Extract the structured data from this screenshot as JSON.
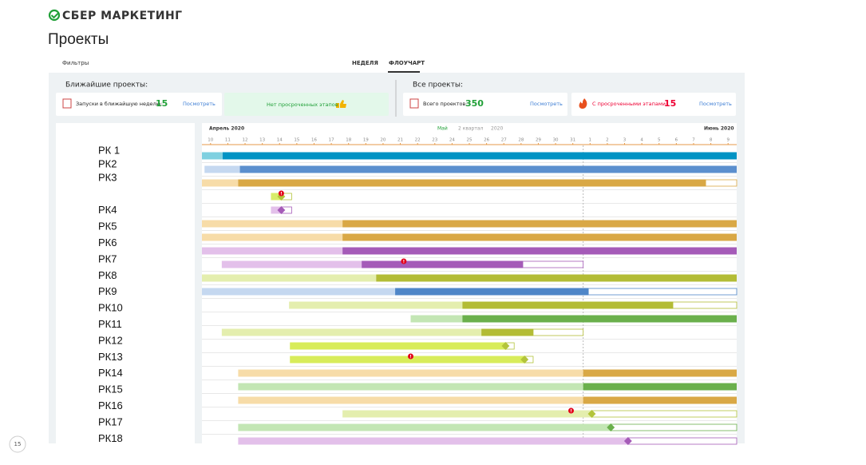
{
  "header": {
    "logo": "СБЕР МАРКЕТИНГ",
    "title": "Проекты"
  },
  "tabs": {
    "filters": "Фильтры",
    "week": "НЕДЕЛЯ",
    "flowchart": "ФЛОУЧАРТ"
  },
  "sections": {
    "near": "Ближайшие проекты:",
    "all": "Все проекты:"
  },
  "cards": [
    {
      "label": "Запуски в ближайшую неделю:",
      "value": 15,
      "link": "Посмотреть"
    },
    {
      "label": "Нет просроченных этапов"
    },
    {
      "label": "Всего проектов:",
      "value": 350,
      "link": "Посмотреть"
    },
    {
      "label": "С просроченными этапами:",
      "value": 15,
      "link": "Посмотреть"
    }
  ],
  "gantt": {
    "month_left": "Апрель 2020",
    "month_mid": "Май",
    "quarter": "2 квартал",
    "year": "2020",
    "month_right": "Июнь 2020",
    "days": [
      10,
      11,
      12,
      13,
      14,
      15,
      16,
      17,
      18,
      19,
      20,
      21,
      22,
      23,
      24,
      25,
      26,
      27,
      28,
      29,
      30,
      31,
      1,
      2,
      3,
      4,
      5,
      6,
      7,
      8,
      9
    ],
    "today": 22.1,
    "labels": [
      {
        "text": "РК 1",
        "row": 0
      },
      {
        "text": "РК2",
        "row": 1
      },
      {
        "text": "РК3",
        "row": 2
      },
      {
        "text": "РК4",
        "row": 4.4
      },
      {
        "text": "РК5",
        "row": 5.6
      },
      {
        "text": "РК6",
        "row": 6.8
      },
      {
        "text": "РК7",
        "row": 8
      },
      {
        "text": "РК8",
        "row": 9.2
      },
      {
        "text": "РК9",
        "row": 10.4
      },
      {
        "text": "РК10",
        "row": 11.6
      },
      {
        "text": "РК11",
        "row": 12.8
      },
      {
        "text": "РК12",
        "row": 14
      },
      {
        "text": "РК13",
        "row": 15.2
      },
      {
        "text": "РК14",
        "row": 16.4
      },
      {
        "text": "РК15",
        "row": 17.6
      },
      {
        "text": "РК16",
        "row": 18.8
      },
      {
        "text": "РК17",
        "row": 20
      },
      {
        "text": "РК18",
        "row": 21.2
      }
    ],
    "rows": [
      {
        "color": "#0093c4",
        "light": "#7fd0e0",
        "segments": [
          {
            "kind": "light",
            "from": 0,
            "to": 1.2
          },
          {
            "kind": "dark",
            "from": 1.2,
            "to": 31
          }
        ]
      },
      {
        "color": "#5b8fce",
        "light": "#c5d8f0",
        "segments": [
          {
            "kind": "light",
            "from": 0.15,
            "to": 2.2
          },
          {
            "kind": "dark",
            "from": 2.2,
            "to": 31
          }
        ]
      },
      {
        "color": "#d9a845",
        "light": "#f7dca8",
        "segments": [
          {
            "kind": "light",
            "from": 0,
            "to": 2.1
          },
          {
            "kind": "dark",
            "from": 2.1,
            "to": 29.2
          },
          {
            "kind": "outline",
            "from": 29.2,
            "to": 31
          }
        ]
      },
      {
        "color": "#b3c43a",
        "light": "#d8ec6a",
        "segments": [
          {
            "kind": "light",
            "from": 4,
            "to": 4.6
          },
          {
            "kind": "outline",
            "from": 4.6,
            "to": 5.2
          }
        ],
        "diamond": 4.6,
        "alert": 4.6
      },
      {
        "color": "#a55bb8",
        "light": "#e3c0ea",
        "segments": [
          {
            "kind": "light",
            "from": 4,
            "to": 4.6
          },
          {
            "kind": "outline",
            "from": 4.6,
            "to": 5.2
          }
        ],
        "diamond": 4.6
      },
      {
        "color": "#d9a845",
        "light": "#f7dca8",
        "segments": [
          {
            "kind": "light",
            "from": 0,
            "to": 8.15
          },
          {
            "kind": "dark",
            "from": 8.15,
            "to": 31
          }
        ]
      },
      {
        "color": "#d9a845",
        "light": "#f7dca8",
        "segments": [
          {
            "kind": "light",
            "from": 0,
            "to": 8.15
          },
          {
            "kind": "dark",
            "from": 8.15,
            "to": 31
          }
        ]
      },
      {
        "color": "#a55bb8",
        "light": "#e3c0ea",
        "segments": [
          {
            "kind": "light",
            "from": 0,
            "to": 8.15
          },
          {
            "kind": "dark",
            "from": 8.15,
            "to": 31
          }
        ]
      },
      {
        "color": "#a55bb8",
        "light": "#e3c0ea",
        "segments": [
          {
            "kind": "light",
            "from": 1.15,
            "to": 9.26
          },
          {
            "kind": "dark",
            "from": 9.26,
            "to": 18.6
          },
          {
            "kind": "outline",
            "from": 18.6,
            "to": 22.1
          }
        ],
        "alert": 11.7
      },
      {
        "color": "#b3bc35",
        "light": "#e4eeae",
        "segments": [
          {
            "kind": "light",
            "from": 0,
            "to": 10.1
          },
          {
            "kind": "dark",
            "from": 10.1,
            "to": 31
          }
        ]
      },
      {
        "color": "#4f86c8",
        "light": "#c5d8f0",
        "segments": [
          {
            "kind": "light",
            "from": 0,
            "to": 11.2
          },
          {
            "kind": "dark",
            "from": 11.2,
            "to": 22.4
          },
          {
            "kind": "outline",
            "from": 22.4,
            "to": 31
          }
        ]
      },
      {
        "color": "#b3bc35",
        "light": "#e4eeae",
        "segments": [
          {
            "kind": "light",
            "from": 5.05,
            "to": 15.1
          },
          {
            "kind": "dark",
            "from": 15.1,
            "to": 27.3
          },
          {
            "kind": "outline",
            "from": 27.3,
            "to": 31
          }
        ]
      },
      {
        "color": "#6ab04c",
        "light": "#c3e6b4",
        "segments": [
          {
            "kind": "light",
            "from": 12.1,
            "to": 15.1
          },
          {
            "kind": "dark",
            "from": 15.1,
            "to": 31
          }
        ]
      },
      {
        "color": "#b3bc35",
        "light": "#e4eeae",
        "segments": [
          {
            "kind": "light",
            "from": 1.15,
            "to": 16.2
          },
          {
            "kind": "dark",
            "from": 16.2,
            "to": 19.2
          },
          {
            "kind": "outline",
            "from": 19.2,
            "to": 22.1
          }
        ]
      },
      {
        "color": "#b3c43a",
        "light": "#d8ec5a",
        "segments": [
          {
            "kind": "light",
            "from": 5.1,
            "to": 17.6
          },
          {
            "kind": "outline",
            "from": 17.6,
            "to": 18.1
          }
        ],
        "diamond": 17.6
      },
      {
        "color": "#b3c43a",
        "light": "#d8ec5a",
        "segments": [
          {
            "kind": "light",
            "from": 5.1,
            "to": 18.7
          },
          {
            "kind": "outline",
            "from": 18.7,
            "to": 19.2
          }
        ],
        "diamond": 18.7,
        "alert": 12.1
      },
      {
        "color": "#d9a845",
        "light": "#f7dca8",
        "segments": [
          {
            "kind": "light",
            "from": 2.1,
            "to": 22.1
          },
          {
            "kind": "dark",
            "from": 22.1,
            "to": 31
          }
        ]
      },
      {
        "color": "#6ab04c",
        "light": "#c3e6b4",
        "segments": [
          {
            "kind": "light",
            "from": 2.1,
            "to": 22.1
          },
          {
            "kind": "dark",
            "from": 22.1,
            "to": 31
          }
        ]
      },
      {
        "color": "#d9a845",
        "light": "#f7dca8",
        "segments": [
          {
            "kind": "light",
            "from": 2.1,
            "to": 22.1
          },
          {
            "kind": "dark",
            "from": 22.1,
            "to": 31
          }
        ]
      },
      {
        "color": "#b3c43a",
        "light": "#e4eeae",
        "segments": [
          {
            "kind": "light",
            "from": 8.15,
            "to": 22.6
          },
          {
            "kind": "outline",
            "from": 22.6,
            "to": 31
          }
        ],
        "diamond": 22.6,
        "alert": 21.4
      },
      {
        "color": "#6ab04c",
        "light": "#c3e6b4",
        "segments": [
          {
            "kind": "light",
            "from": 2.1,
            "to": 23.7
          },
          {
            "kind": "outline",
            "from": 23.7,
            "to": 31
          }
        ],
        "diamond": 23.7
      },
      {
        "color": "#a55bb8",
        "light": "#e3c0ea",
        "segments": [
          {
            "kind": "light",
            "from": 2.1,
            "to": 24.7
          },
          {
            "kind": "outline",
            "from": 24.7,
            "to": 31
          }
        ],
        "diamond": 24.7
      }
    ]
  },
  "page_number": 15
}
